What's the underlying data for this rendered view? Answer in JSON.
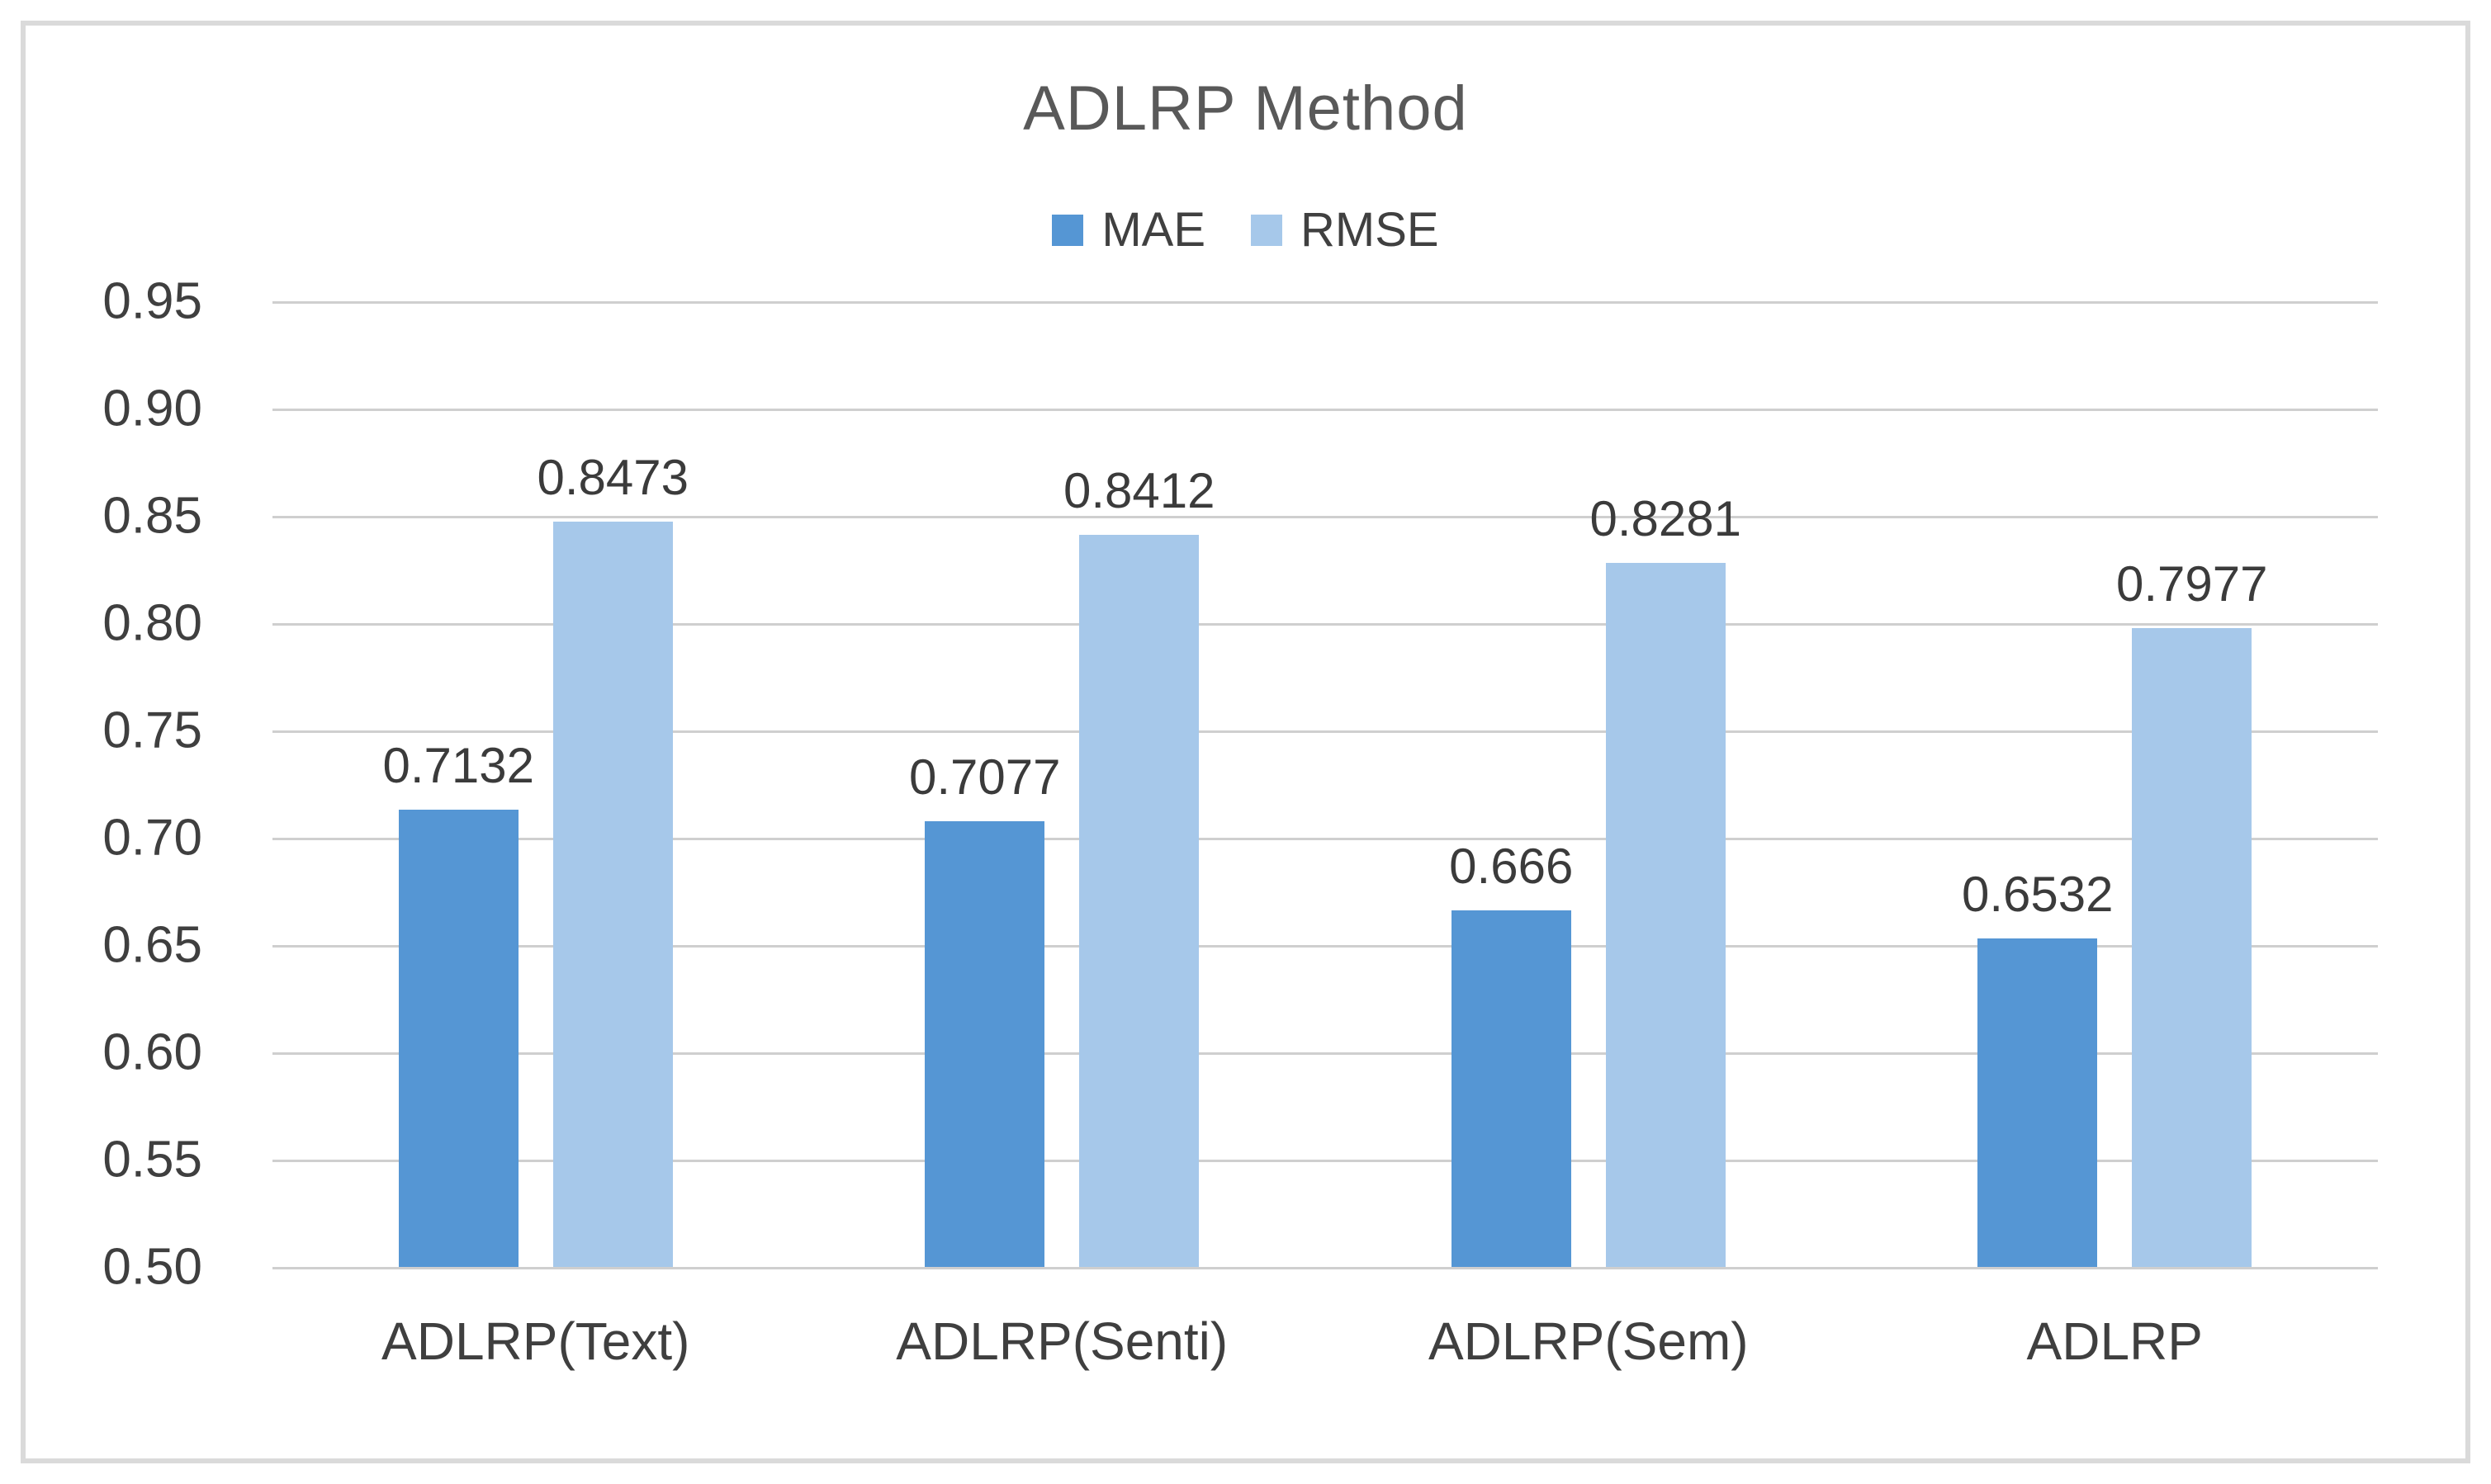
{
  "chart_data": {
    "type": "bar",
    "title": "ADLRP Method",
    "categories": [
      "ADLRP(Text)",
      "ADLRP(Senti)",
      "ADLRP(Sem)",
      "ADLRP"
    ],
    "series": [
      {
        "name": "MAE",
        "color": "#5596D4",
        "values": [
          0.7132,
          0.7077,
          0.666,
          0.6532
        ],
        "labels": [
          "0.7132",
          "0.7077",
          "0.666",
          "0.6532"
        ]
      },
      {
        "name": "RMSE",
        "color": "#A6C8EA",
        "values": [
          0.8473,
          0.8412,
          0.8281,
          0.7977
        ],
        "labels": [
          "0.8473",
          "0.8412",
          "0.8281",
          "0.7977"
        ]
      }
    ],
    "ylim": [
      0.5,
      0.95
    ],
    "ytick_step": 0.05,
    "yticks": [
      "0.95",
      "0.90",
      "0.85",
      "0.80",
      "0.75",
      "0.70",
      "0.65",
      "0.60",
      "0.55",
      "0.50"
    ],
    "grid": true,
    "legend_position": "top",
    "colors": {
      "gridline": "#cfcfcf",
      "frame_border": "#dadada",
      "title_text": "#595959",
      "axis_text": "#3f3f3f",
      "data_label_text": "#3b3b3b",
      "background": "#ffffff"
    }
  }
}
